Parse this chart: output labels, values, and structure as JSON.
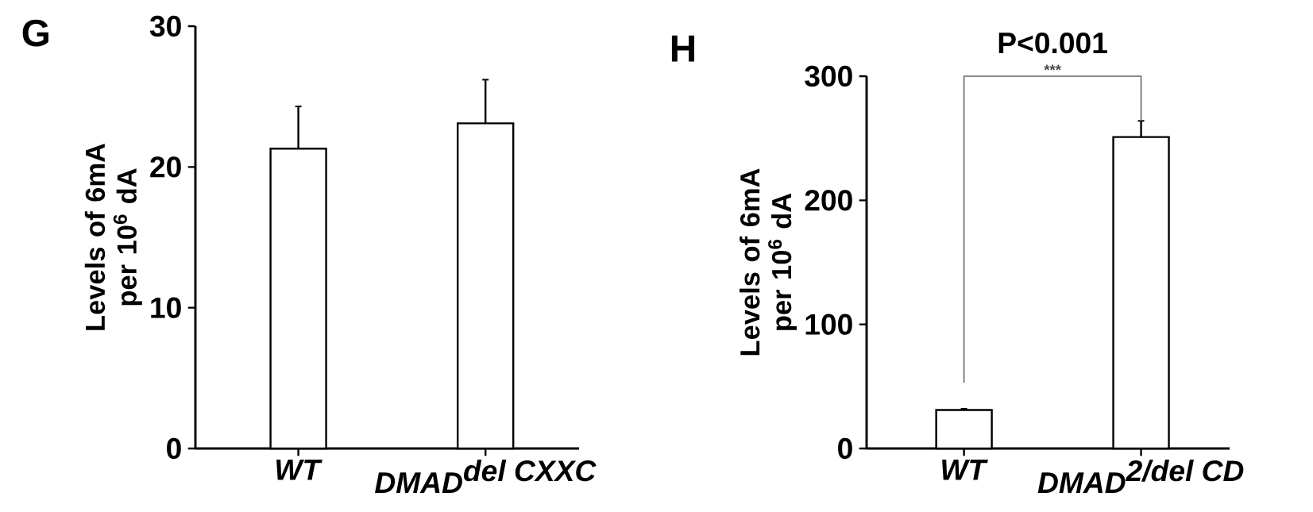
{
  "chart_data": [
    {
      "type": "bar",
      "title": "G",
      "ylabel": "Levels of 6mA per 10$^{6}$ dA",
      "categories": [
        "*WT*",
        "\\textit{DMAD}^{\\textit{del CXXC}}"
      ],
      "values": [
        21.3,
        23.1
      ],
      "errors": [
        3.0,
        3.1
      ],
      "color": "#ffffff",
      "ylim": [
        0,
        30
      ],
      "yticks": [
        0,
        10,
        20,
        30
      ]
    },
    {
      "type": "bar",
      "title": "H",
      "ylabel": "Levels of 6mA per 10$^{6}$ dA",
      "categories": [
        "*WT*",
        "\\textit{DMAD}^{\\textit{2/del CD}}"
      ],
      "values": [
        31,
        251
      ],
      "errors": [
        1,
        13
      ],
      "color": "#ffffff",
      "ylim": [
        0,
        300
      ],
      "yticks": [
        0,
        100,
        200,
        300
      ],
      "annotations": [
        "P<0.001",
        "***"
      ]
    }
  ]
}
